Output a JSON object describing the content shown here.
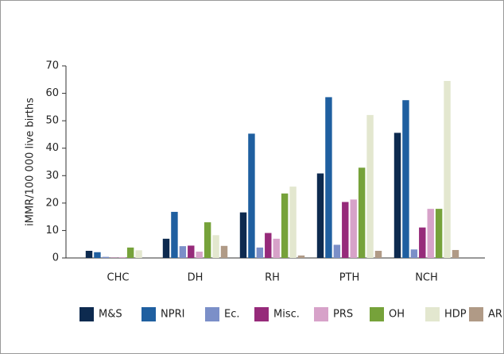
{
  "chart_data": {
    "type": "bar",
    "ylabel": "iMMR/100 000 live births",
    "categories": [
      "CHC",
      "DH",
      "RH",
      "PTH",
      "NCH"
    ],
    "series": [
      {
        "name": "M&S",
        "color": "#0d2a4f",
        "values": [
          2.6,
          7.0,
          16.6,
          30.8,
          45.6
        ]
      },
      {
        "name": "NPRI",
        "color": "#1f5fa0",
        "values": [
          2.1,
          16.8,
          45.3,
          58.6,
          57.5
        ]
      },
      {
        "name": "Ec.",
        "color": "#7b8fc8",
        "values": [
          0.4,
          4.3,
          3.8,
          4.8,
          3.1
        ]
      },
      {
        "name": "Misc.",
        "color": "#962a7a",
        "values": [
          0.1,
          4.5,
          9.1,
          20.4,
          11.1
        ]
      },
      {
        "name": "PRS",
        "color": "#d7a2c9",
        "values": [
          0.3,
          2.3,
          7.0,
          21.3,
          17.9
        ]
      },
      {
        "name": "OH",
        "color": "#76a23a",
        "values": [
          3.8,
          13.0,
          23.5,
          32.9,
          17.9
        ]
      },
      {
        "name": "HDP",
        "color": "#e3e7cf",
        "values": [
          2.8,
          8.3,
          26.0,
          52.1,
          64.5
        ]
      },
      {
        "name": "AR",
        "color": "#b09a86",
        "values": [
          0,
          4.4,
          0.9,
          2.6,
          2.9
        ]
      }
    ],
    "ylim": [
      0,
      70
    ],
    "yticks": [
      0,
      10,
      20,
      30,
      40,
      50,
      60,
      70
    ],
    "legend": "bottom"
  }
}
